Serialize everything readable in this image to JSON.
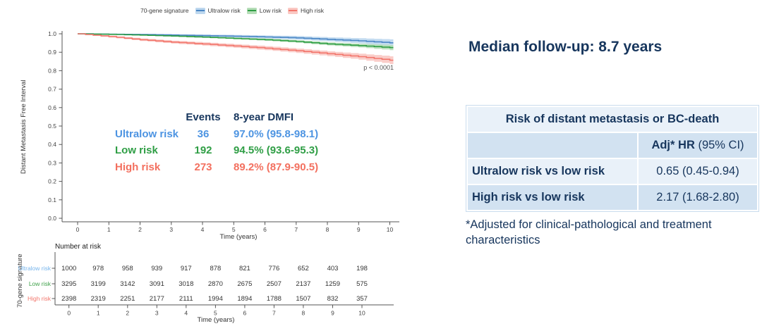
{
  "legend": {
    "title": "70-gene signature",
    "items": [
      {
        "label": "Ultralow risk"
      },
      {
        "label": "Low risk"
      },
      {
        "label": "High risk"
      }
    ]
  },
  "plot": {
    "y_axis_title": "Distant Metastasis Free Interval",
    "x_axis_title": "Time (years)",
    "p_value": "p < 0.0001",
    "y_tick_labels": [
      "1.0",
      "0.9",
      "0.8",
      "0.7",
      "0.6",
      "0.5",
      "0.4",
      "0.3",
      "0.2",
      "0.1",
      "0.0"
    ],
    "x_tick_labels": [
      "0",
      "1",
      "2",
      "3",
      "4",
      "5",
      "6",
      "7",
      "8",
      "9",
      "10"
    ]
  },
  "annotation": {
    "col_events": "Events",
    "col_dmfi": "8-year DMFI",
    "rows": [
      {
        "label": "Ultralow risk",
        "events": "36",
        "dmfi": "97.0% (95.8-98.1)"
      },
      {
        "label": "Low risk",
        "events": "192",
        "dmfi": "94.5% (93.6-95.3)"
      },
      {
        "label": "High risk",
        "events": "273",
        "dmfi": "89.2% (87.9-90.5)"
      }
    ]
  },
  "risk_table": {
    "title": "Number at risk",
    "y_axis_title": "70-gene signature",
    "x_axis_title": "Time (years)",
    "rows": [
      {
        "label": "Ultralow risk"
      },
      {
        "label": "Low risk"
      },
      {
        "label": "High risk"
      }
    ]
  },
  "panel": {
    "title": "Median follow-up: 8.7 years",
    "table": {
      "header": "Risk of distant metastasis or BC-death",
      "col_header_bold": "Adj* HR",
      "col_header_rest": " (95% CI)",
      "rows": [
        {
          "label": "Ultralow risk vs low risk",
          "value": "0.65 (0.45-0.94)"
        },
        {
          "label": "High risk vs low risk",
          "value": "2.17 (1.68-2.80)"
        }
      ]
    },
    "footnote": "*Adjusted for clinical-pathological and treatment characteristics"
  },
  "chart_data": {
    "type": "line",
    "subtype": "kaplan-meier",
    "title": "",
    "xlabel": "Time (years)",
    "ylabel": "Distant Metastasis Free Interval",
    "x": [
      0,
      1,
      2,
      3,
      4,
      5,
      6,
      7,
      8,
      9,
      10
    ],
    "ylim": [
      0.0,
      1.0
    ],
    "y_tick_step": 0.1,
    "legend_position": "top",
    "grid": false,
    "p_value": "p < 0.0001",
    "series": [
      {
        "name": "Ultralow risk",
        "line_color": "#4A86C5",
        "band_color": "#BDD7EE",
        "text_color": "#4D94E2",
        "risk_label_color": "#77B5EC",
        "values": [
          1.0,
          0.998,
          0.996,
          0.993,
          0.99,
          0.987,
          0.983,
          0.978,
          0.97,
          0.962,
          0.951
        ],
        "ci_half_width": [
          0.002,
          0.003,
          0.004,
          0.005,
          0.006,
          0.007,
          0.008,
          0.01,
          0.011,
          0.014,
          0.019
        ],
        "events": 36,
        "eight_year_dmfi": "97.0% (95.8-98.1)",
        "at_risk": [
          1000,
          978,
          958,
          939,
          917,
          878,
          821,
          776,
          652,
          403,
          198
        ]
      },
      {
        "name": "Low risk",
        "line_color": "#2F9E45",
        "band_color": "#B5DDB7",
        "text_color": "#2F9E45",
        "risk_label_color": "#3FA14A",
        "values": [
          1.0,
          0.997,
          0.993,
          0.988,
          0.982,
          0.975,
          0.968,
          0.958,
          0.945,
          0.936,
          0.925
        ],
        "ci_half_width": [
          0.001,
          0.002,
          0.003,
          0.004,
          0.004,
          0.005,
          0.006,
          0.007,
          0.008,
          0.01,
          0.014
        ],
        "events": 192,
        "eight_year_dmfi": "94.5% (93.6-95.3)",
        "at_risk": [
          3295,
          3199,
          3142,
          3091,
          3018,
          2870,
          2675,
          2507,
          2137,
          1259,
          575
        ]
      },
      {
        "name": "High risk",
        "line_color": "#F2766C",
        "band_color": "#FAC8C3",
        "text_color": "#F3705F",
        "risk_label_color": "#F2766C",
        "values": [
          1.0,
          0.985,
          0.968,
          0.955,
          0.945,
          0.934,
          0.922,
          0.908,
          0.892,
          0.876,
          0.857
        ],
        "ci_half_width": [
          0.002,
          0.005,
          0.007,
          0.008,
          0.009,
          0.01,
          0.011,
          0.012,
          0.013,
          0.016,
          0.021
        ],
        "events": 273,
        "eight_year_dmfi": "89.2% (87.9-90.5)",
        "at_risk": [
          2398,
          2319,
          2251,
          2177,
          2111,
          1994,
          1894,
          1788,
          1507,
          832,
          357
        ]
      }
    ]
  }
}
